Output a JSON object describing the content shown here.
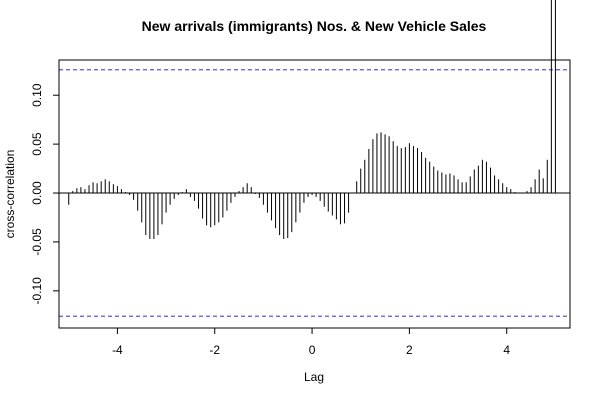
{
  "chart_data": {
    "type": "bar",
    "subtype": "cross-correlation",
    "title": "New arrivals (immigrants) Nos. & New Vehicle Sales",
    "xlabel": "Lag",
    "ylabel": "cross-correlation",
    "xlim": [
      -5.2,
      5.3
    ],
    "ylim": [
      -0.138,
      0.136
    ],
    "xticks": [
      -4,
      -2,
      0,
      2,
      4
    ],
    "xtick_labels": [
      "-4",
      "-2",
      "0",
      "2",
      "4"
    ],
    "yticks": [
      -0.1,
      -0.05,
      0.0,
      0.05,
      0.1
    ],
    "ytick_labels": [
      "-0.10",
      "-0.05",
      "0.00",
      "0.05",
      "0.10"
    ],
    "grid": false,
    "confidence_bounds": [
      0.126,
      -0.126
    ],
    "colors": {
      "bars": "#000000",
      "bounds": "#5555dd",
      "zero_line": "#000000",
      "frame": "#000000"
    },
    "lags": [
      -5.0,
      -4.917,
      -4.833,
      -4.75,
      -4.667,
      -4.583,
      -4.5,
      -4.417,
      -4.333,
      -4.25,
      -4.167,
      -4.083,
      -4.0,
      -3.917,
      -3.833,
      -3.75,
      -3.667,
      -3.583,
      -3.5,
      -3.417,
      -3.333,
      -3.25,
      -3.167,
      -3.083,
      -3.0,
      -2.917,
      -2.833,
      -2.75,
      -2.667,
      -2.583,
      -2.5,
      -2.417,
      -2.333,
      -2.25,
      -2.167,
      -2.083,
      -2.0,
      -1.917,
      -1.833,
      -1.75,
      -1.667,
      -1.583,
      -1.5,
      -1.417,
      -1.333,
      -1.25,
      -1.167,
      -1.083,
      -1.0,
      -0.917,
      -0.833,
      -0.75,
      -0.667,
      -0.583,
      -0.5,
      -0.417,
      -0.333,
      -0.25,
      -0.167,
      -0.083,
      0.0,
      0.083,
      0.167,
      0.25,
      0.333,
      0.417,
      0.5,
      0.583,
      0.667,
      0.75,
      0.833,
      0.917,
      1.0,
      1.083,
      1.167,
      1.25,
      1.333,
      1.417,
      1.5,
      1.583,
      1.667,
      1.75,
      1.833,
      1.917,
      2.0,
      2.083,
      2.167,
      2.25,
      2.333,
      2.417,
      2.5,
      2.583,
      2.667,
      2.75,
      2.833,
      2.917,
      3.0,
      3.083,
      3.167,
      3.25,
      3.333,
      3.417,
      3.5,
      3.583,
      3.667,
      3.75,
      3.833,
      3.917,
      4.0,
      4.083,
      4.167,
      4.25,
      4.333,
      4.417,
      4.5,
      4.583,
      4.667,
      4.75,
      4.833,
      4.917,
      5.0
    ],
    "values": [
      -0.012,
      0.002,
      0.005,
      0.006,
      0.004,
      0.008,
      0.011,
      0.01,
      0.012,
      0.014,
      0.012,
      0.009,
      0.007,
      0.004,
      0.001,
      -0.002,
      -0.007,
      -0.018,
      -0.03,
      -0.043,
      -0.047,
      -0.047,
      -0.043,
      -0.032,
      -0.02,
      -0.012,
      -0.006,
      -0.002,
      0.001,
      0.004,
      -0.004,
      -0.008,
      -0.016,
      -0.026,
      -0.033,
      -0.035,
      -0.033,
      -0.03,
      -0.025,
      -0.018,
      -0.01,
      -0.004,
      0.002,
      0.006,
      0.01,
      0.006,
      -0.001,
      -0.005,
      -0.012,
      -0.02,
      -0.028,
      -0.036,
      -0.043,
      -0.047,
      -0.046,
      -0.04,
      -0.03,
      -0.02,
      -0.01,
      -0.004,
      -0.002,
      -0.004,
      -0.008,
      -0.014,
      -0.019,
      -0.023,
      -0.027,
      -0.032,
      -0.031,
      -0.02,
      0.0,
      0.012,
      0.025,
      0.034,
      0.045,
      0.055,
      0.061,
      0.062,
      0.06,
      0.058,
      0.053,
      0.048,
      0.046,
      0.047,
      0.051,
      0.048,
      0.046,
      0.042,
      0.036,
      0.032,
      0.027,
      0.023,
      0.021,
      0.019,
      0.02,
      0.018,
      0.014,
      0.011,
      0.011,
      0.017,
      0.024,
      0.028,
      0.034,
      0.032,
      0.026,
      0.018,
      0.014,
      0.01,
      0.006,
      0.004,
      0.001,
      0.0,
      0.0,
      0.002,
      0.006,
      0.014,
      0.024,
      0.015,
      0.034
    ]
  }
}
